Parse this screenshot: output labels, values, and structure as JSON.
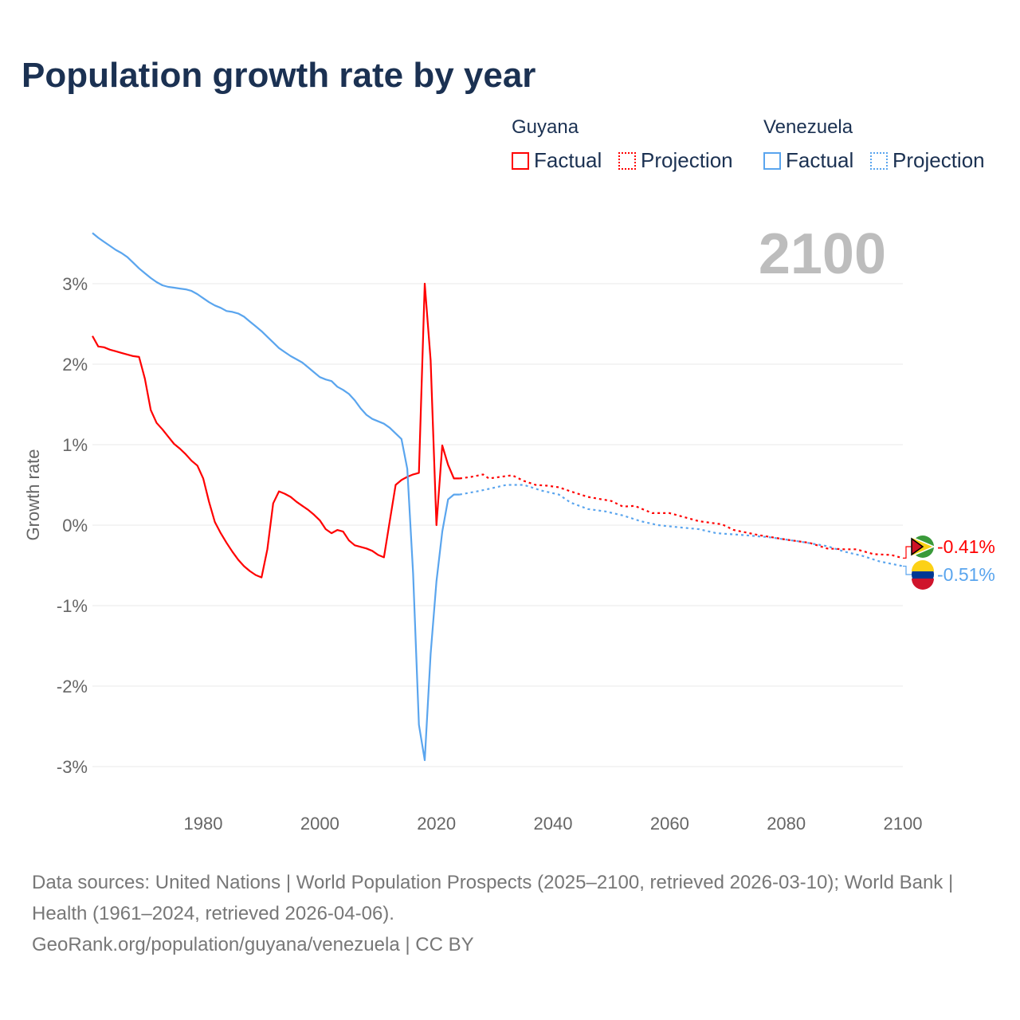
{
  "title": "Population growth rate by year",
  "legend": {
    "groups": [
      {
        "name": "Guyana",
        "factual": "Factual",
        "projection": "Projection"
      },
      {
        "name": "Venezuela",
        "factual": "Factual",
        "projection": "Projection"
      }
    ]
  },
  "current_year": "2100",
  "end_labels": {
    "guyana": "-0.41%",
    "venezuela": "-0.51%"
  },
  "source_lines": [
    "Data sources: United Nations | World Population Prospects (2025–2100, retrieved 2026-03-10); World Bank | Health (1961–2024, retrieved 2026-04-06).",
    "GeoRank.org/population/guyana/venezuela | CC BY"
  ],
  "chart_data": {
    "type": "line",
    "title": "Population growth rate by year",
    "xlabel": "",
    "ylabel": "Growth rate",
    "xlim": [
      1961,
      2100
    ],
    "ylim": [
      -3.5,
      3.9
    ],
    "xticks": [
      1980,
      2000,
      2020,
      2040,
      2060,
      2080,
      2100
    ],
    "yticks": [
      {
        "v": 3,
        "label": "3%"
      },
      {
        "v": 2,
        "label": "2%"
      },
      {
        "v": 1,
        "label": "1%"
      },
      {
        "v": 0,
        "label": "0%"
      },
      {
        "v": -1,
        "label": "-1%"
      },
      {
        "v": -2,
        "label": "-2%"
      },
      {
        "v": -3,
        "label": "-3%"
      }
    ],
    "colors": {
      "guyana": "#ff0000",
      "venezuela": "#5aa5ee"
    },
    "series": [
      {
        "name": "Guyana Factual",
        "key": "guyana",
        "style": "solid",
        "start": 1961,
        "values": [
          2.35,
          2.22,
          2.21,
          2.18,
          2.16,
          2.14,
          2.12,
          2.1,
          2.09,
          1.82,
          1.43,
          1.27,
          1.19,
          1.1,
          1.01,
          0.95,
          0.88,
          0.8,
          0.74,
          0.58,
          0.29,
          0.04,
          -0.1,
          -0.22,
          -0.33,
          -0.43,
          -0.51,
          -0.57,
          -0.62,
          -0.65,
          -0.3,
          0.27,
          0.42,
          0.39,
          0.35,
          0.29,
          0.24,
          0.19,
          0.13,
          0.06,
          -0.05,
          -0.1,
          -0.06,
          -0.08,
          -0.19,
          -0.25,
          -0.27,
          -0.29,
          -0.32,
          -0.37,
          -0.4,
          0.05,
          0.5,
          0.56,
          0.6,
          0.63,
          0.65,
          3.0,
          2.05,
          0.0,
          0.99,
          0.75,
          0.58,
          0.58
        ]
      },
      {
        "name": "Guyana Projection",
        "key": "guyana",
        "style": "dotted",
        "points": [
          [
            2024,
            0.58
          ],
          [
            2026,
            0.6
          ],
          [
            2028,
            0.63
          ],
          [
            2029,
            0.58
          ],
          [
            2031,
            0.6
          ],
          [
            2033,
            0.62
          ],
          [
            2035,
            0.55
          ],
          [
            2037,
            0.5
          ],
          [
            2039,
            0.49
          ],
          [
            2041,
            0.47
          ],
          [
            2043,
            0.42
          ],
          [
            2046,
            0.35
          ],
          [
            2050,
            0.3
          ],
          [
            2052,
            0.23
          ],
          [
            2054,
            0.24
          ],
          [
            2057,
            0.15
          ],
          [
            2060,
            0.15
          ],
          [
            2062,
            0.11
          ],
          [
            2065,
            0.05
          ],
          [
            2069,
            0.01
          ],
          [
            2071,
            -0.06
          ],
          [
            2075,
            -0.12
          ],
          [
            2080,
            -0.18
          ],
          [
            2084,
            -0.22
          ],
          [
            2087,
            -0.29
          ],
          [
            2090,
            -0.3
          ],
          [
            2092,
            -0.3
          ],
          [
            2095,
            -0.36
          ],
          [
            2098,
            -0.37
          ],
          [
            2100,
            -0.41
          ]
        ]
      },
      {
        "name": "Venezuela Factual",
        "key": "venezuela",
        "style": "solid",
        "start": 1961,
        "values": [
          3.63,
          3.57,
          3.52,
          3.47,
          3.42,
          3.38,
          3.33,
          3.26,
          3.19,
          3.13,
          3.07,
          3.02,
          2.98,
          2.96,
          2.95,
          2.94,
          2.93,
          2.91,
          2.87,
          2.82,
          2.77,
          2.73,
          2.7,
          2.66,
          2.65,
          2.63,
          2.59,
          2.53,
          2.47,
          2.41,
          2.34,
          2.27,
          2.2,
          2.15,
          2.1,
          2.06,
          2.02,
          1.96,
          1.9,
          1.84,
          1.81,
          1.79,
          1.72,
          1.68,
          1.63,
          1.55,
          1.45,
          1.37,
          1.32,
          1.29,
          1.26,
          1.21,
          1.14,
          1.07,
          0.7,
          -0.6,
          -2.48,
          -2.92,
          -1.6,
          -0.7,
          -0.08,
          0.32,
          0.38,
          0.38
        ]
      },
      {
        "name": "Venezuela Projection",
        "key": "venezuela",
        "style": "dotted",
        "points": [
          [
            2024,
            0.38
          ],
          [
            2027,
            0.42
          ],
          [
            2029,
            0.45
          ],
          [
            2032,
            0.5
          ],
          [
            2035,
            0.5
          ],
          [
            2038,
            0.43
          ],
          [
            2041,
            0.38
          ],
          [
            2043,
            0.28
          ],
          [
            2046,
            0.2
          ],
          [
            2049,
            0.17
          ],
          [
            2052,
            0.12
          ],
          [
            2055,
            0.05
          ],
          [
            2058,
            0.0
          ],
          [
            2062,
            -0.03
          ],
          [
            2065,
            -0.05
          ],
          [
            2068,
            -0.1
          ],
          [
            2072,
            -0.12
          ],
          [
            2077,
            -0.15
          ],
          [
            2082,
            -0.2
          ],
          [
            2087,
            -0.26
          ],
          [
            2090,
            -0.33
          ],
          [
            2093,
            -0.38
          ],
          [
            2096,
            -0.45
          ],
          [
            2100,
            -0.51
          ]
        ]
      }
    ]
  }
}
